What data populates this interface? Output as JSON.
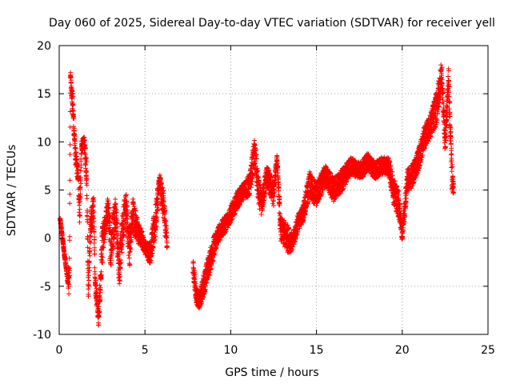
{
  "chart_data": {
    "type": "scatter",
    "title": "Day 060 of 2025, Sidereal Day-to-day VTEC variation (SDTVAR) for receiver yell",
    "xlabel": "GPS time / hours",
    "ylabel": "SDTVAR / TECUs",
    "xlim": [
      0,
      25
    ],
    "ylim": [
      -10,
      20
    ],
    "xticks": [
      0,
      5,
      10,
      15,
      20,
      25
    ],
    "yticks": [
      -10,
      -5,
      0,
      5,
      10,
      15,
      20
    ],
    "grid": true,
    "marker": "plus",
    "series_color": "#ff0000",
    "profile": [
      [
        0.05,
        2,
        0.3
      ],
      [
        0.5,
        -4.5,
        0.5
      ],
      [
        0.6,
        -4.0,
        4.0
      ],
      [
        0.65,
        17,
        0.6
      ],
      [
        0.8,
        13.5,
        2.0
      ],
      [
        0.95,
        8.5,
        1.5
      ],
      [
        1.1,
        6.5,
        1.5
      ],
      [
        1.2,
        3.0,
        3.5
      ],
      [
        1.3,
        9.5,
        1.0
      ],
      [
        1.45,
        10.0,
        1.0
      ],
      [
        1.6,
        7.0,
        3.0
      ],
      [
        1.7,
        -5.5,
        1.5
      ],
      [
        1.8,
        0.5,
        3.0
      ],
      [
        2.0,
        3.5,
        2.0
      ],
      [
        2.1,
        -4.5,
        1.5
      ],
      [
        2.3,
        -8.5,
        1.5
      ],
      [
        2.5,
        -1.0,
        3.5
      ],
      [
        2.7,
        1.5,
        2.0
      ],
      [
        2.85,
        3.0,
        2.5
      ],
      [
        3.0,
        -1.0,
        4.0
      ],
      [
        3.3,
        3.0,
        3.0
      ],
      [
        3.5,
        -3.5,
        3.5
      ],
      [
        3.7,
        1.5,
        3.0
      ],
      [
        3.9,
        3.0,
        3.0
      ],
      [
        4.1,
        -1.0,
        3.5
      ],
      [
        4.3,
        2.5,
        3.0
      ],
      [
        4.6,
        0.5,
        2.0
      ],
      [
        4.8,
        0.0,
        1.5
      ],
      [
        5.0,
        -1.0,
        1.0
      ],
      [
        5.3,
        -1.5,
        2.0
      ],
      [
        5.6,
        1.5,
        3.0
      ],
      [
        5.85,
        6.0,
        1.5
      ],
      [
        6.1,
        3.0,
        3.0
      ],
      [
        6.3,
        -0.5,
        1.5
      ],
      [
        7.8,
        -3.0,
        1.5
      ],
      [
        8.0,
        -6.0,
        1.5
      ],
      [
        8.2,
        -6.5,
        1.5
      ],
      [
        8.4,
        -5.0,
        2.0
      ],
      [
        8.7,
        -3.0,
        2.0
      ],
      [
        9.0,
        -1.0,
        2.0
      ],
      [
        9.3,
        0.5,
        1.5
      ],
      [
        9.7,
        1.5,
        1.5
      ],
      [
        10.0,
        2.5,
        1.5
      ],
      [
        10.4,
        4.0,
        1.5
      ],
      [
        10.8,
        5.0,
        1.5
      ],
      [
        11.1,
        5.5,
        2.0
      ],
      [
        11.4,
        9.0,
        2.5
      ],
      [
        11.6,
        5.0,
        2.5
      ],
      [
        11.8,
        3.5,
        2.0
      ],
      [
        12.1,
        6.5,
        2.0
      ],
      [
        12.5,
        4.5,
        2.0
      ],
      [
        12.7,
        8.5,
        0.6
      ],
      [
        12.9,
        1.0,
        2.0
      ],
      [
        13.3,
        0.0,
        2.5
      ],
      [
        13.6,
        -0.5,
        1.5
      ],
      [
        13.9,
        1.5,
        1.5
      ],
      [
        14.2,
        2.5,
        1.5
      ],
      [
        14.6,
        5.5,
        2.5
      ],
      [
        15.0,
        4.5,
        2.0
      ],
      [
        15.5,
        6.5,
        2.0
      ],
      [
        16.0,
        5.0,
        2.0
      ],
      [
        16.5,
        6.0,
        2.0
      ],
      [
        17.0,
        7.5,
        1.5
      ],
      [
        17.6,
        7.0,
        1.5
      ],
      [
        18.0,
        8.0,
        1.5
      ],
      [
        18.4,
        7.0,
        1.5
      ],
      [
        18.8,
        7.5,
        1.5
      ],
      [
        19.2,
        7.5,
        1.5
      ],
      [
        19.5,
        5.0,
        2.5
      ],
      [
        19.8,
        3.5,
        2.5
      ],
      [
        20.0,
        0.5,
        1.5
      ],
      [
        20.3,
        6.0,
        2.0
      ],
      [
        20.6,
        6.5,
        2.0
      ],
      [
        21.0,
        8.5,
        2.0
      ],
      [
        21.3,
        10.5,
        2.0
      ],
      [
        21.6,
        11.5,
        2.0
      ],
      [
        22.0,
        13.5,
        3.0
      ],
      [
        22.3,
        17.0,
        2.5
      ],
      [
        22.5,
        10.0,
        2.0
      ],
      [
        22.7,
        16.5,
        2.5
      ],
      [
        22.9,
        6.5,
        2.5
      ],
      [
        23.0,
        5.0,
        1.0
      ]
    ]
  }
}
